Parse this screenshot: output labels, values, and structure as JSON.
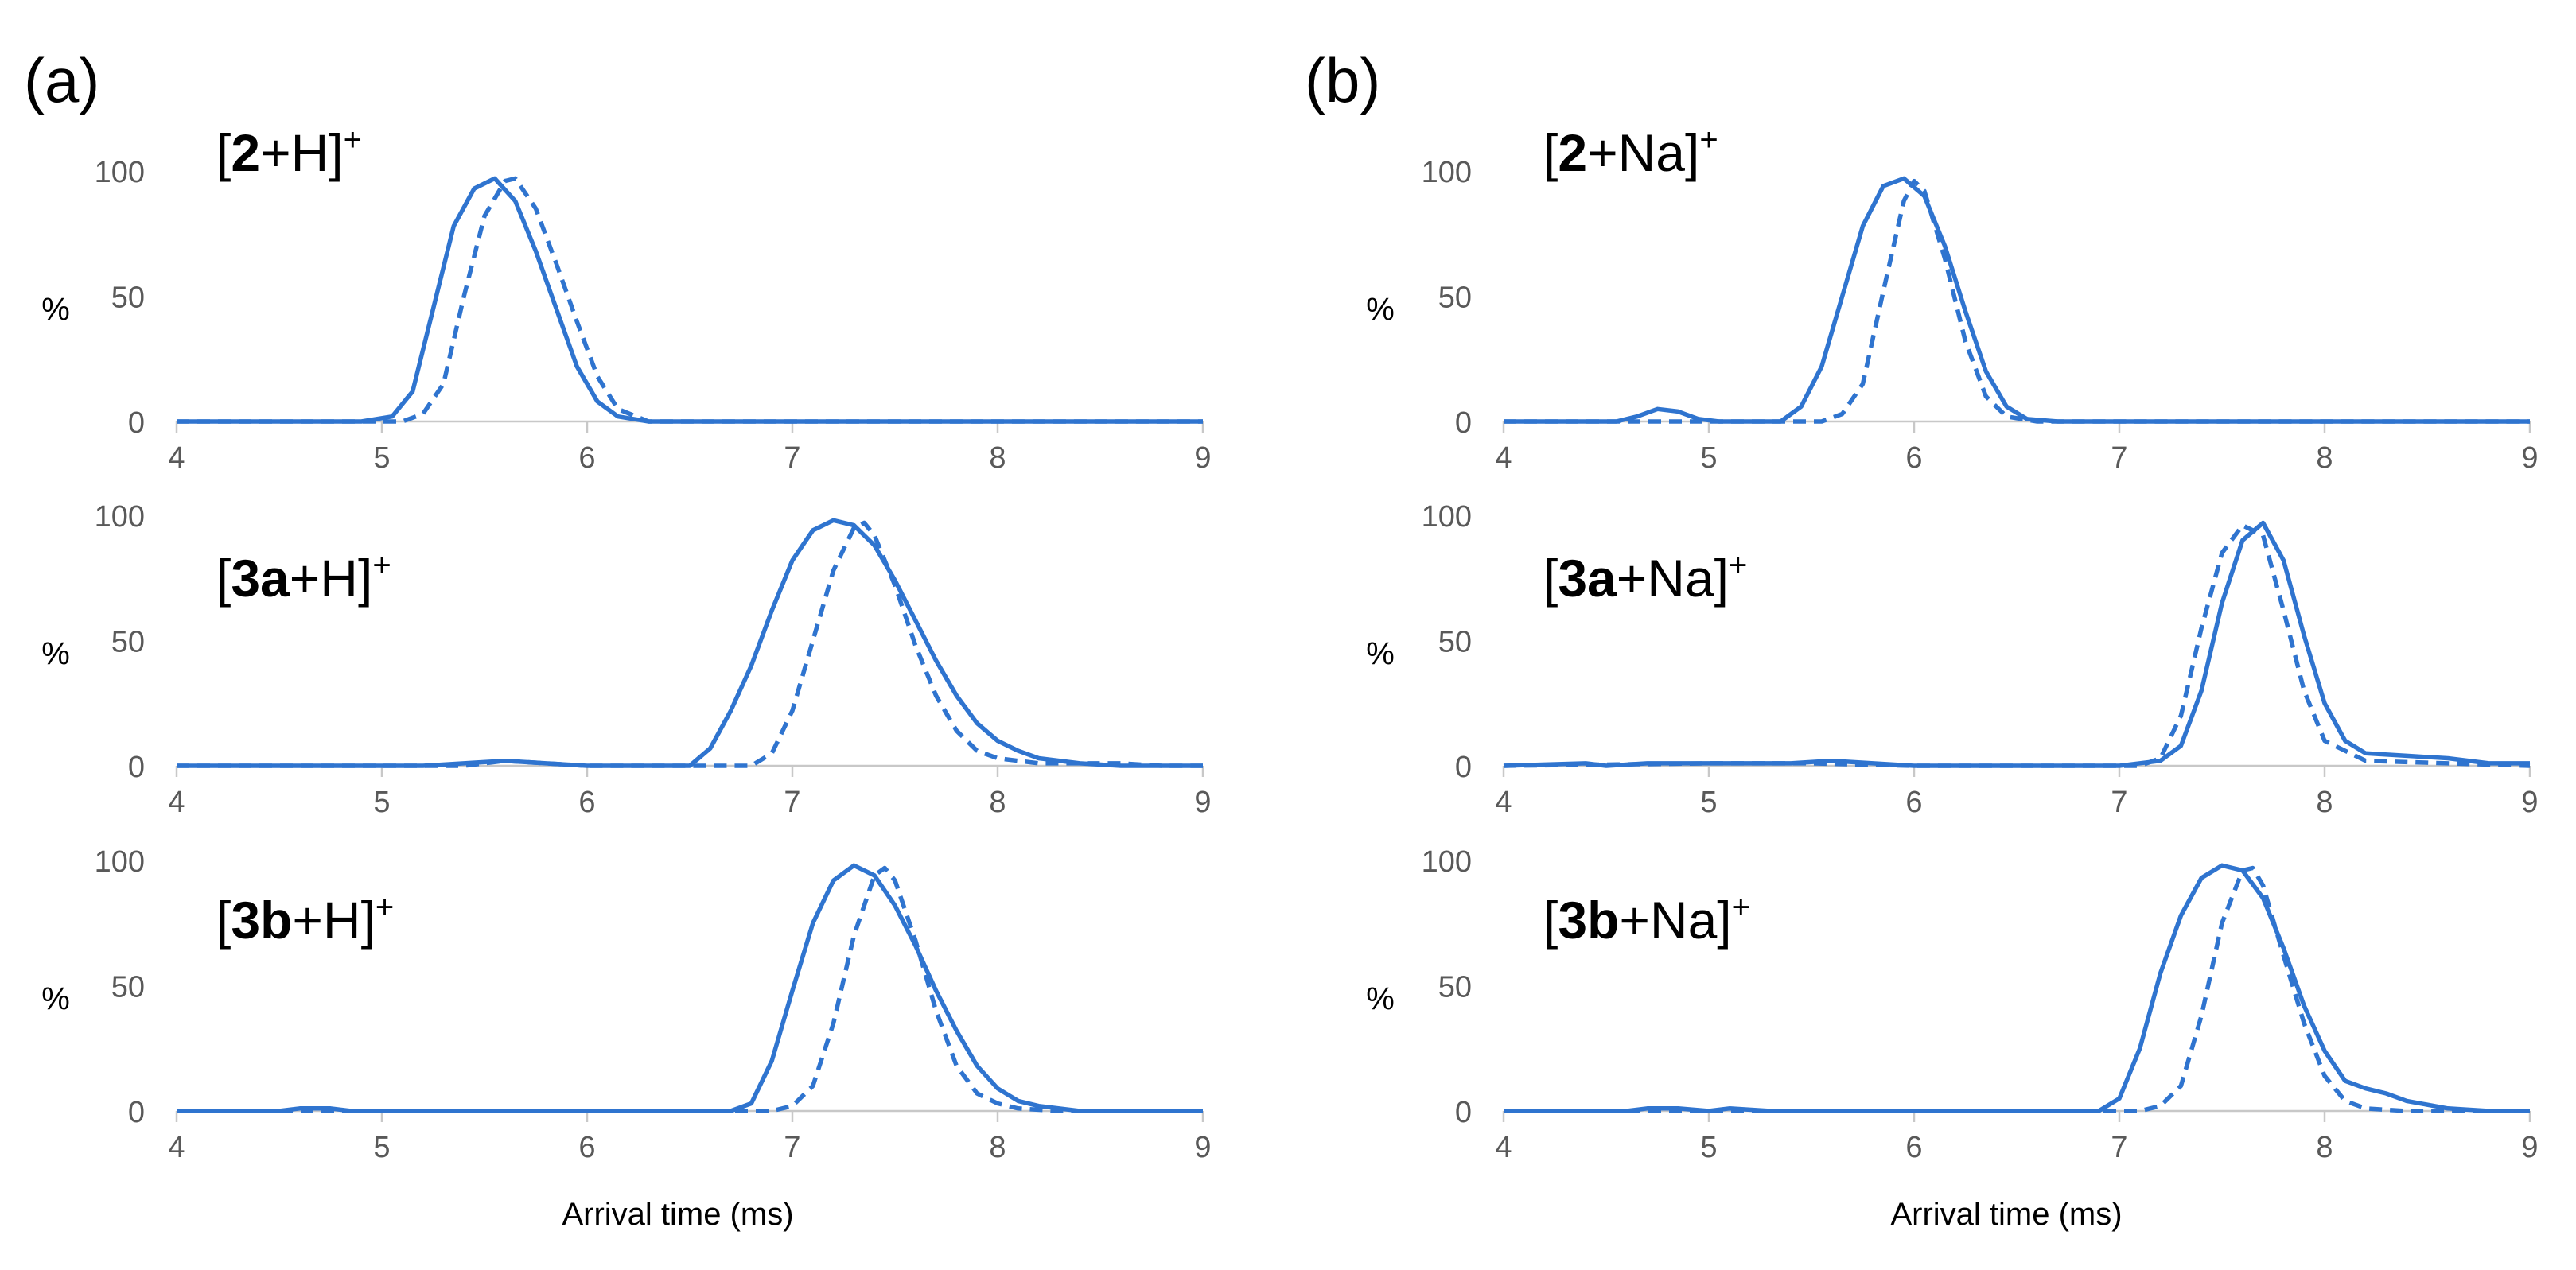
{
  "figure": {
    "panels": [
      {
        "letter": "(a)",
        "xlabel": "Arrival time (ms)"
      },
      {
        "letter": "(b)",
        "xlabel": "Arrival time (ms)"
      }
    ]
  },
  "colors": {
    "series": "#2F74CF",
    "axis": "#C8C8C8",
    "tick_text": "#595959"
  },
  "chart_data": [
    {
      "type": "line",
      "panel": "(a)",
      "row": 1,
      "label_prefix": "[",
      "label_bold": "2",
      "label_rest": "+H]",
      "label_sup": "+",
      "xlabel": "",
      "ylabel": "%",
      "xlim": [
        4,
        9
      ],
      "ylim": [
        0,
        100
      ],
      "xticks": [
        4,
        5,
        6,
        7,
        8,
        9
      ],
      "yticks": [
        0,
        50,
        100
      ],
      "series": [
        {
          "name": "solid",
          "style": "solid",
          "x": [
            4,
            4.9,
            5.05,
            5.15,
            5.25,
            5.35,
            5.45,
            5.55,
            5.65,
            5.75,
            5.85,
            5.95,
            6.05,
            6.15,
            6.3,
            9
          ],
          "y": [
            0,
            0,
            2,
            12,
            45,
            78,
            93,
            97,
            88,
            68,
            45,
            22,
            8,
            2,
            0,
            0
          ]
        },
        {
          "name": "dashed",
          "style": "dashed",
          "x": [
            4,
            5.1,
            5.2,
            5.3,
            5.4,
            5.5,
            5.6,
            5.65,
            5.75,
            5.85,
            5.95,
            6.05,
            6.15,
            6.3,
            9
          ],
          "y": [
            0,
            0,
            3,
            15,
            50,
            82,
            96,
            97,
            85,
            63,
            40,
            18,
            5,
            0,
            0
          ]
        }
      ]
    },
    {
      "type": "line",
      "panel": "(a)",
      "row": 2,
      "label_prefix": "[",
      "label_bold": "3a",
      "label_rest": "+H]",
      "label_sup": "+",
      "xlabel": "",
      "ylabel": "%",
      "xlim": [
        4,
        9
      ],
      "ylim": [
        0,
        100
      ],
      "xticks": [
        4,
        5,
        6,
        7,
        8,
        9
      ],
      "yticks": [
        0,
        50,
        100
      ],
      "series": [
        {
          "name": "solid",
          "style": "solid",
          "x": [
            4,
            5.2,
            5.4,
            5.6,
            5.8,
            6.0,
            6.5,
            6.6,
            6.7,
            6.8,
            6.9,
            7.0,
            7.1,
            7.2,
            7.3,
            7.4,
            7.5,
            7.6,
            7.7,
            7.8,
            7.9,
            8.0,
            8.1,
            8.2,
            8.4,
            8.6,
            9
          ],
          "y": [
            0,
            0,
            1,
            2,
            1,
            0,
            0,
            7,
            22,
            40,
            62,
            82,
            94,
            98,
            96,
            88,
            74,
            58,
            42,
            28,
            17,
            10,
            6,
            3,
            1,
            0,
            0
          ]
        },
        {
          "name": "dashed",
          "style": "dashed",
          "x": [
            4,
            5.4,
            5.6,
            5.8,
            6.0,
            6.2,
            6.8,
            6.9,
            7.0,
            7.1,
            7.2,
            7.3,
            7.35,
            7.4,
            7.5,
            7.6,
            7.7,
            7.8,
            7.9,
            8.0,
            8.1,
            8.2,
            8.4,
            8.6,
            8.8,
            9
          ],
          "y": [
            0,
            0,
            2,
            1,
            0,
            0,
            0,
            5,
            22,
            50,
            78,
            95,
            97,
            92,
            72,
            48,
            28,
            14,
            6,
            3,
            2,
            1,
            1,
            1,
            0,
            0
          ]
        }
      ]
    },
    {
      "type": "line",
      "panel": "(a)",
      "row": 3,
      "label_prefix": "[",
      "label_bold": "3b",
      "label_rest": "+H]",
      "label_sup": "+",
      "xlabel": "Arrival time (ms)",
      "ylabel": "%",
      "xlim": [
        4,
        9
      ],
      "ylim": [
        0,
        100
      ],
      "xticks": [
        4,
        5,
        6,
        7,
        8,
        9
      ],
      "yticks": [
        0,
        50,
        100
      ],
      "series": [
        {
          "name": "solid",
          "style": "solid",
          "x": [
            4,
            4.5,
            4.6,
            4.75,
            4.85,
            6.7,
            6.8,
            6.9,
            7.0,
            7.1,
            7.2,
            7.3,
            7.4,
            7.5,
            7.6,
            7.7,
            7.8,
            7.9,
            8.0,
            8.1,
            8.2,
            8.4,
            9
          ],
          "y": [
            0,
            0,
            1,
            1,
            0,
            0,
            3,
            20,
            48,
            75,
            92,
            98,
            94,
            82,
            66,
            48,
            32,
            18,
            9,
            4,
            2,
            0,
            0
          ]
        },
        {
          "name": "dashed",
          "style": "dashed",
          "x": [
            4,
            6.9,
            7.0,
            7.1,
            7.2,
            7.3,
            7.4,
            7.45,
            7.5,
            7.6,
            7.7,
            7.8,
            7.9,
            8.0,
            8.1,
            8.3,
            9
          ],
          "y": [
            0,
            0,
            2,
            10,
            35,
            70,
            94,
            97,
            92,
            68,
            40,
            18,
            7,
            3,
            1,
            0,
            0
          ]
        }
      ]
    },
    {
      "type": "line",
      "panel": "(b)",
      "row": 1,
      "label_prefix": "[",
      "label_bold": "2",
      "label_rest": "+Na]",
      "label_sup": "+",
      "xlabel": "",
      "ylabel": "%",
      "xlim": [
        4,
        9
      ],
      "ylim": [
        0,
        100
      ],
      "xticks": [
        4,
        5,
        6,
        7,
        8,
        9
      ],
      "yticks": [
        0,
        50,
        100
      ],
      "series": [
        {
          "name": "solid",
          "style": "solid",
          "x": [
            4,
            4.55,
            4.65,
            4.75,
            4.85,
            4.95,
            5.05,
            5.35,
            5.45,
            5.55,
            5.65,
            5.75,
            5.85,
            5.95,
            6.05,
            6.15,
            6.25,
            6.35,
            6.45,
            6.55,
            6.7,
            9
          ],
          "y": [
            0,
            0,
            2,
            5,
            4,
            1,
            0,
            0,
            6,
            22,
            50,
            78,
            94,
            97,
            90,
            70,
            44,
            20,
            6,
            1,
            0,
            0
          ]
        },
        {
          "name": "dashed",
          "style": "dashed",
          "x": [
            4,
            5.55,
            5.65,
            5.75,
            5.85,
            5.95,
            6.0,
            6.05,
            6.15,
            6.25,
            6.35,
            6.45,
            6.6,
            9
          ],
          "y": [
            0,
            0,
            3,
            15,
            52,
            88,
            96,
            92,
            65,
            32,
            10,
            2,
            0,
            0
          ]
        }
      ]
    },
    {
      "type": "line",
      "panel": "(b)",
      "row": 2,
      "label_prefix": "[",
      "label_bold": "3a",
      "label_rest": "+Na]",
      "label_sup": "+",
      "xlabel": "",
      "ylabel": "%",
      "xlim": [
        4,
        9
      ],
      "ylim": [
        0,
        100
      ],
      "xticks": [
        4,
        5,
        6,
        7,
        8,
        9
      ],
      "yticks": [
        0,
        50,
        100
      ],
      "series": [
        {
          "name": "solid",
          "style": "solid",
          "x": [
            4,
            4.4,
            4.5,
            4.7,
            5.0,
            5.4,
            5.6,
            5.8,
            6.0,
            7.0,
            7.2,
            7.3,
            7.4,
            7.5,
            7.6,
            7.7,
            7.8,
            7.9,
            8.0,
            8.1,
            8.2,
            8.4,
            8.6,
            8.8,
            9
          ],
          "y": [
            0,
            1,
            0,
            1,
            1,
            1,
            2,
            1,
            0,
            0,
            2,
            8,
            30,
            65,
            90,
            97,
            82,
            52,
            25,
            10,
            5,
            4,
            3,
            1,
            1
          ]
        },
        {
          "name": "dashed",
          "style": "dashed",
          "x": [
            4,
            5.0,
            5.5,
            6.0,
            7.1,
            7.2,
            7.3,
            7.4,
            7.5,
            7.6,
            7.7,
            7.8,
            7.9,
            8.0,
            8.2,
            8.6,
            9
          ],
          "y": [
            0,
            1,
            1,
            0,
            0,
            3,
            20,
            55,
            85,
            96,
            92,
            62,
            30,
            10,
            2,
            1,
            0
          ]
        }
      ]
    },
    {
      "type": "line",
      "panel": "(b)",
      "row": 3,
      "label_prefix": "[",
      "label_bold": "3b",
      "label_rest": "+Na]",
      "label_sup": "+",
      "xlabel": "Arrival time (ms)",
      "ylabel": "%",
      "xlim": [
        4,
        9
      ],
      "ylim": [
        0,
        100
      ],
      "xticks": [
        4,
        5,
        6,
        7,
        8,
        9
      ],
      "yticks": [
        0,
        50,
        100
      ],
      "series": [
        {
          "name": "solid",
          "style": "solid",
          "x": [
            4,
            4.6,
            4.7,
            4.85,
            5.0,
            5.1,
            5.3,
            6.9,
            7.0,
            7.1,
            7.2,
            7.3,
            7.4,
            7.5,
            7.6,
            7.7,
            7.8,
            7.9,
            8.0,
            8.1,
            8.2,
            8.3,
            8.4,
            8.6,
            8.8,
            9
          ],
          "y": [
            0,
            0,
            1,
            1,
            0,
            1,
            0,
            0,
            5,
            25,
            55,
            78,
            93,
            98,
            96,
            85,
            65,
            42,
            24,
            12,
            9,
            7,
            4,
            1,
            0,
            0
          ]
        },
        {
          "name": "dashed",
          "style": "dashed",
          "x": [
            4,
            7.1,
            7.2,
            7.3,
            7.4,
            7.5,
            7.6,
            7.65,
            7.7,
            7.8,
            7.9,
            8.0,
            8.1,
            8.2,
            8.4,
            9
          ],
          "y": [
            0,
            0,
            2,
            10,
            38,
            75,
            96,
            97,
            90,
            62,
            35,
            14,
            4,
            1,
            0,
            0
          ]
        }
      ]
    }
  ]
}
